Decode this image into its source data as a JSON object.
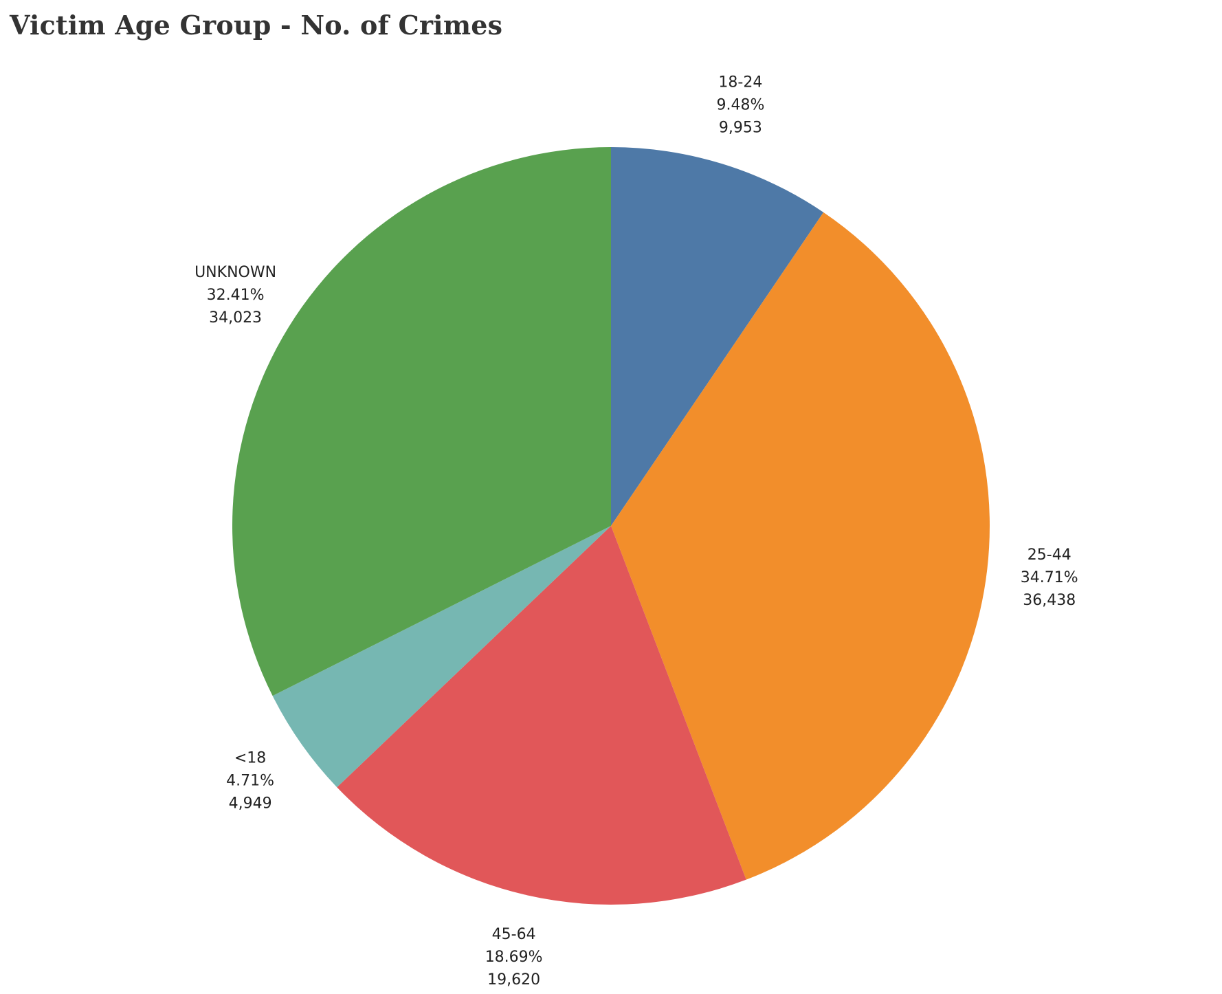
{
  "chart_data": {
    "type": "pie",
    "title": "Victim Age Group - No. of Crimes",
    "slices": [
      {
        "label": "18-24",
        "percent_label": "9.48%",
        "count_label": "9,953",
        "value": 9953,
        "color": "#4e79a7"
      },
      {
        "label": "25-44",
        "percent_label": "34.71%",
        "count_label": "36,438",
        "value": 36438,
        "color": "#f28e2b"
      },
      {
        "label": "45-64",
        "percent_label": "18.69%",
        "count_label": "19,620",
        "value": 19620,
        "color": "#e15759"
      },
      {
        "label": "<18",
        "percent_label": "4.71%",
        "count_label": "4,949",
        "value": 4949,
        "color": "#76b7b2"
      },
      {
        "label": "UNKNOWN",
        "percent_label": "32.41%",
        "count_label": "34,023",
        "value": 34023,
        "color": "#59a14f"
      }
    ]
  }
}
